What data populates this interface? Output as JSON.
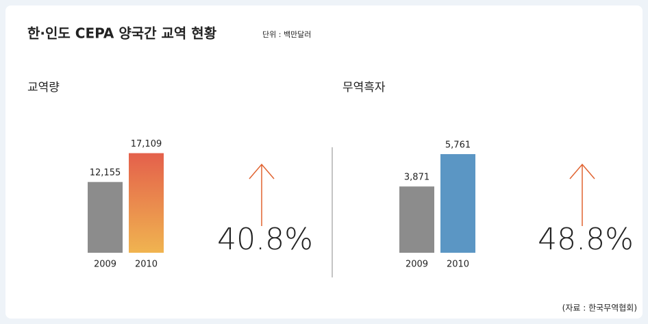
{
  "title": "한·인도 CEPA 양국간 교역 현황",
  "subtitle": "단위 : 백만달러",
  "source": "(자료 : 한국무역협회)",
  "chart_data": [
    {
      "type": "bar",
      "title": "교역량",
      "categories": [
        "2009",
        "2010"
      ],
      "values": [
        12155,
        17109
      ],
      "value_labels": [
        "12,155",
        "17,109"
      ],
      "colors": [
        "#8c8c8c",
        "#e4604b"
      ],
      "gradient_to": "#f0b450",
      "ylim": [
        0,
        20000
      ],
      "annotation": "40.8%",
      "annotation_color": "#e0622f"
    },
    {
      "type": "bar",
      "title": "무역흑자",
      "categories": [
        "2009",
        "2010"
      ],
      "values": [
        3871,
        5761
      ],
      "value_labels": [
        "3,871",
        "5,761"
      ],
      "colors": [
        "#8c8c8c",
        "#5b96c4"
      ],
      "ylim": [
        0,
        6800
      ],
      "annotation": "48.8%",
      "annotation_color": "#e0622f"
    }
  ]
}
